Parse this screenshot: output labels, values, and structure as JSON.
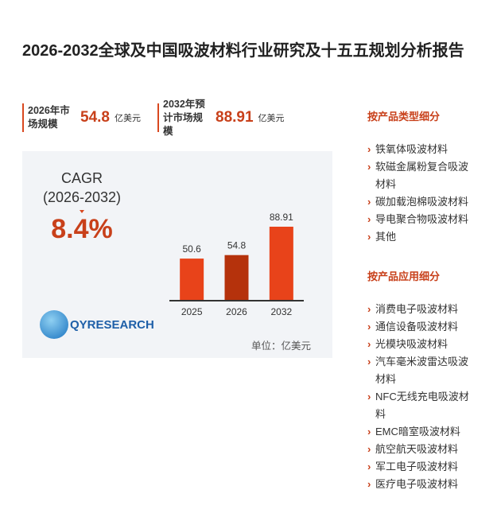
{
  "header": {
    "title": "2026-2032全球及中国吸波材料行业研究及十五五规划分析报告"
  },
  "stats": [
    {
      "label": "2026年市场规模",
      "value": "54.8",
      "unit": "亿美元"
    },
    {
      "label": "2032年预计市场规模",
      "value": "88.91",
      "unit": "亿美元"
    }
  ],
  "cagr": {
    "label": "CAGR",
    "period": "(2026-2032)",
    "value": "8.4%"
  },
  "chart_data": {
    "type": "bar",
    "categories": [
      "2025",
      "2026",
      "2032"
    ],
    "values": [
      50.6,
      54.8,
      88.91
    ],
    "colors": [
      "#e8431a",
      "#b5320c",
      "#e8431a"
    ],
    "unit_note": "单位：亿美元"
  },
  "logo": "QYRESEARCH",
  "sidebar": [
    {
      "heading": "按产品类型细分",
      "items": [
        "铁氧体吸波材料",
        "软磁金属粉复合吸波材料",
        "碳加载泡棉吸波材料",
        "导电聚合物吸波材料",
        "其他"
      ]
    },
    {
      "heading": "按产品应用细分",
      "items": [
        "消费电子吸波材料",
        "通信设备吸波材料",
        "光模块吸波材料",
        "汽车毫米波雷达吸波材料",
        "NFC无线充电吸波材料",
        "EMC暗室吸波材料",
        "航空航天吸波材料",
        "军工电子吸波材料",
        "医疗电子吸波材料"
      ]
    }
  ]
}
